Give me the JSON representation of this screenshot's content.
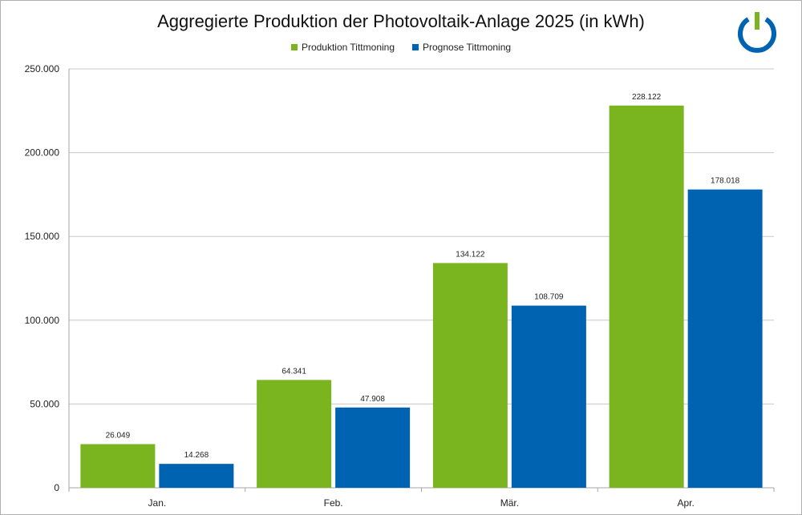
{
  "chart_data": {
    "type": "bar",
    "title": "Aggregierte Produktion der Photovoltaik-Anlage 2025 (in kWh)",
    "xlabel": "",
    "ylabel": "",
    "categories": [
      "Jan.",
      "Feb.",
      "Mär.",
      "Apr."
    ],
    "series": [
      {
        "name": "Produktion Tittmoning",
        "color": "#7ab51f",
        "values": [
          26049,
          64341,
          134122,
          228122
        ],
        "labels": [
          "26.049",
          "64.341",
          "134.122",
          "228.122"
        ]
      },
      {
        "name": "Prognose Tittmoning",
        "color": "#0063b1",
        "values": [
          14268,
          47908,
          108709,
          178018
        ],
        "labels": [
          "14.268",
          "47.908",
          "108.709",
          "178.018"
        ]
      }
    ],
    "ylim": [
      0,
      250000
    ],
    "yticks": [
      0,
      50000,
      100000,
      150000,
      200000,
      250000
    ],
    "ytick_labels": [
      "0",
      "50.000",
      "100.000",
      "150.000",
      "200.000",
      "250.000"
    ],
    "grid": true,
    "legend_position": "top-center"
  },
  "logo": {
    "icon": "power-icon",
    "ring_color": "#0063b1",
    "bar_color": "#7ab51f"
  }
}
